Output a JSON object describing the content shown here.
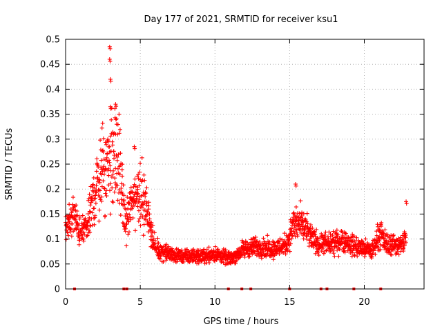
{
  "chart_data": {
    "type": "scatter",
    "title": "Day 177 of 2021, SRMTID for receiver ksu1",
    "xlabel": "GPS time / hours",
    "ylabel": "SRMTID / TECUs",
    "xlim": [
      0,
      24
    ],
    "ylim": [
      0,
      0.5
    ],
    "xticks": [
      0,
      5,
      10,
      15,
      20
    ],
    "xtick_labels": [
      "0",
      "5",
      "10",
      "15",
      "20"
    ],
    "yticks": [
      0,
      0.05,
      0.1,
      0.15,
      0.2,
      0.25,
      0.3,
      0.35,
      0.4,
      0.45,
      0.5
    ],
    "ytick_labels": [
      "0",
      "0.05",
      "0.1",
      "0.15",
      "0.2",
      "0.25",
      "0.3",
      "0.35",
      "0.4",
      "0.45",
      "0.5"
    ],
    "grid": true,
    "marker": "+",
    "color": "#ff0000",
    "envelope": {
      "description": "typical SRMTID level by hour (scatter points are drawn around these values)",
      "hours": [
        0,
        0.5,
        1,
        1.5,
        2,
        2.5,
        3,
        3.5,
        4,
        4.5,
        5,
        5.5,
        6,
        7,
        8,
        9,
        10,
        11,
        12,
        13,
        14,
        14.8,
        15.3,
        15.8,
        16.5,
        17,
        18,
        18.5,
        19,
        19.5,
        20,
        20.5,
        21,
        21.5,
        22,
        22.5,
        22.8
      ],
      "values": [
        0.12,
        0.15,
        0.11,
        0.13,
        0.2,
        0.24,
        0.26,
        0.27,
        0.13,
        0.18,
        0.2,
        0.15,
        0.08,
        0.07,
        0.065,
        0.065,
        0.07,
        0.06,
        0.08,
        0.085,
        0.08,
        0.09,
        0.13,
        0.13,
        0.1,
        0.09,
        0.09,
        0.1,
        0.09,
        0.085,
        0.08,
        0.075,
        0.11,
        0.09,
        0.09,
        0.085,
        0.11
      ]
    },
    "peaks": [
      {
        "hour": 2.95,
        "value": 0.485
      },
      {
        "hour": 2.95,
        "value": 0.46
      },
      {
        "hour": 3.0,
        "value": 0.42
      },
      {
        "hour": 3.0,
        "value": 0.365
      },
      {
        "hour": 3.35,
        "value": 0.37
      },
      {
        "hour": 4.6,
        "value": 0.285
      },
      {
        "hour": 15.4,
        "value": 0.21
      },
      {
        "hour": 22.8,
        "value": 0.175
      }
    ],
    "gap_markers_hours": [
      0.6,
      3.9,
      4.1,
      10.9,
      11.8,
      12.4,
      15.0,
      17.1,
      17.5,
      19.3,
      21.1
    ]
  }
}
